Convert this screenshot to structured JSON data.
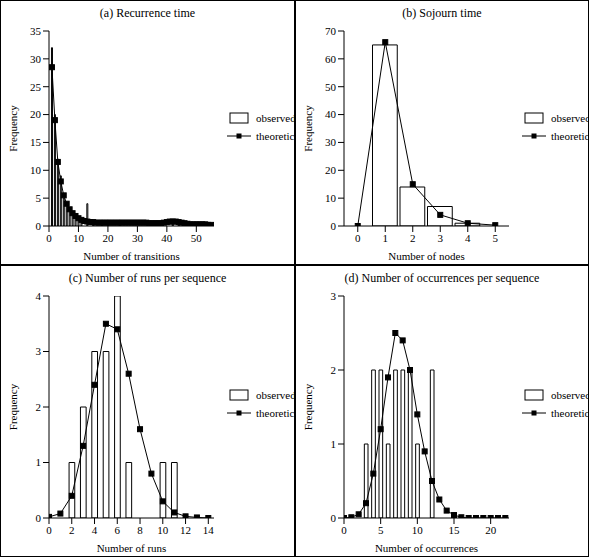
{
  "chart_data": [
    {
      "type": "bar",
      "title": "(a) Recurrence time",
      "x_label": "Number of transitions",
      "y_label": "Frequency",
      "legend": "right",
      "x": [
        0,
        1,
        2,
        3,
        4,
        5,
        6,
        7,
        8,
        9,
        10,
        11,
        12,
        13,
        14,
        15,
        16,
        17,
        18,
        19,
        20,
        21,
        22,
        23,
        24,
        25,
        26,
        27,
        28,
        29,
        30,
        31,
        32,
        33,
        34,
        35,
        36,
        37,
        38,
        39,
        40,
        41,
        42,
        43,
        44,
        45,
        46,
        47,
        48,
        49,
        50,
        51,
        52,
        53,
        54,
        55
      ],
      "xlim": [
        0,
        56
      ],
      "xticks": [
        0,
        10,
        20,
        30,
        40,
        50
      ],
      "ylim": [
        0,
        35
      ],
      "yticks": [
        0,
        5,
        10,
        15,
        20,
        25,
        30,
        35
      ],
      "series": [
        {
          "name": "observed",
          "type": "bar",
          "color": "#ffffff",
          "values": [
            0,
            32,
            20,
            12,
            9,
            5,
            4,
            3,
            2,
            2,
            1,
            1,
            0,
            4,
            0,
            1,
            0,
            0,
            1,
            0,
            1,
            0,
            0,
            0,
            1,
            0,
            0,
            0,
            0,
            0,
            0,
            0,
            0,
            0,
            0,
            0,
            0,
            0,
            0,
            0,
            0,
            0,
            1,
            0,
            1,
            0,
            0,
            0,
            0,
            0,
            0,
            0,
            0,
            0,
            0,
            0
          ]
        },
        {
          "name": "theoretical",
          "type": "line",
          "color": "#000000",
          "marker": "square",
          "values": [
            null,
            28.5,
            19,
            11.5,
            8,
            5.5,
            4,
            3,
            2.3,
            1.8,
            1.4,
            1.1,
            0.9,
            0.8,
            0.7,
            0.7,
            0.6,
            0.6,
            0.6,
            0.6,
            0.6,
            0.6,
            0.6,
            0.6,
            0.6,
            0.6,
            0.6,
            0.6,
            0.6,
            0.6,
            0.6,
            0.6,
            0.6,
            0.6,
            0.5,
            0.5,
            0.5,
            0.5,
            0.5,
            0.6,
            0.7,
            0.8,
            0.8,
            0.8,
            0.7,
            0.6,
            0.5,
            0.4,
            0.3,
            0.3,
            0.3,
            0.3,
            0.3,
            0.3,
            0.2,
            0.2
          ]
        }
      ]
    },
    {
      "type": "bar",
      "title": "(b) Sojourn time",
      "x_label": "Number of nodes",
      "y_label": "Frequency",
      "legend": "right",
      "x": [
        0,
        1,
        2,
        3,
        4,
        5
      ],
      "xlim": [
        -0.5,
        5.5
      ],
      "xticks": [
        0,
        1,
        2,
        3,
        4,
        5
      ],
      "ylim": [
        0,
        70
      ],
      "yticks": [
        0,
        10,
        20,
        30,
        40,
        50,
        60,
        70
      ],
      "series": [
        {
          "name": "observed",
          "type": "bar",
          "color": "#ffffff",
          "values": [
            0,
            65,
            14,
            7,
            1,
            0
          ]
        },
        {
          "name": "theoretical",
          "type": "line",
          "color": "#000000",
          "marker": "square",
          "values": [
            0,
            66,
            15,
            4,
            1,
            0.3
          ]
        }
      ]
    },
    {
      "type": "bar",
      "title": "(c) Number of runs per sequence",
      "x_label": "Number of runs",
      "y_label": "Frequency",
      "legend": "right",
      "x": [
        0,
        1,
        2,
        3,
        4,
        5,
        6,
        7,
        8,
        9,
        10,
        11,
        12,
        13,
        14
      ],
      "xlim": [
        0,
        14.5
      ],
      "xticks": [
        0,
        2,
        4,
        6,
        8,
        10,
        12,
        14
      ],
      "ylim": [
        0,
        4
      ],
      "yticks": [
        0,
        1,
        2,
        3,
        4
      ],
      "series": [
        {
          "name": "observed",
          "type": "bar",
          "color": "#ffffff",
          "values": [
            0,
            0,
            1,
            2,
            3,
            3,
            4,
            1,
            0,
            0,
            1,
            1,
            0,
            0,
            0
          ]
        },
        {
          "name": "theoretical",
          "type": "line",
          "color": "#000000",
          "marker": "square",
          "values": [
            0.02,
            0.08,
            0.4,
            1.3,
            2.4,
            3.5,
            3.4,
            2.6,
            1.6,
            0.8,
            0.3,
            0.1,
            0.03,
            0.01,
            0
          ]
        }
      ]
    },
    {
      "type": "bar",
      "title": "(d) Number of occurrences per sequence",
      "x_label": "Number of occurrences",
      "y_label": "Frequency",
      "legend": "right",
      "x": [
        0,
        1,
        2,
        3,
        4,
        5,
        6,
        7,
        8,
        9,
        10,
        11,
        12,
        13,
        14,
        15,
        16,
        17,
        18,
        19,
        20,
        21,
        22
      ],
      "xlim": [
        0,
        22.5
      ],
      "xticks": [
        0,
        5,
        10,
        15,
        20
      ],
      "ylim": [
        0,
        3
      ],
      "yticks": [
        0,
        1,
        2,
        3
      ],
      "series": [
        {
          "name": "observed",
          "type": "bar",
          "color": "#ffffff",
          "values": [
            0,
            0,
            0,
            1,
            2,
            2,
            1,
            2,
            2,
            2,
            1,
            0,
            2,
            0,
            0,
            0,
            0,
            0,
            0,
            0,
            0,
            0,
            0
          ]
        },
        {
          "name": "theoretical",
          "type": "line",
          "color": "#000000",
          "marker": "square",
          "values": [
            0,
            0.01,
            0.05,
            0.2,
            0.6,
            1.2,
            1.9,
            2.5,
            2.4,
            2.0,
            1.4,
            0.9,
            0.5,
            0.25,
            0.1,
            0.04,
            0.01,
            0,
            0,
            0,
            0,
            0,
            0
          ]
        }
      ]
    }
  ]
}
